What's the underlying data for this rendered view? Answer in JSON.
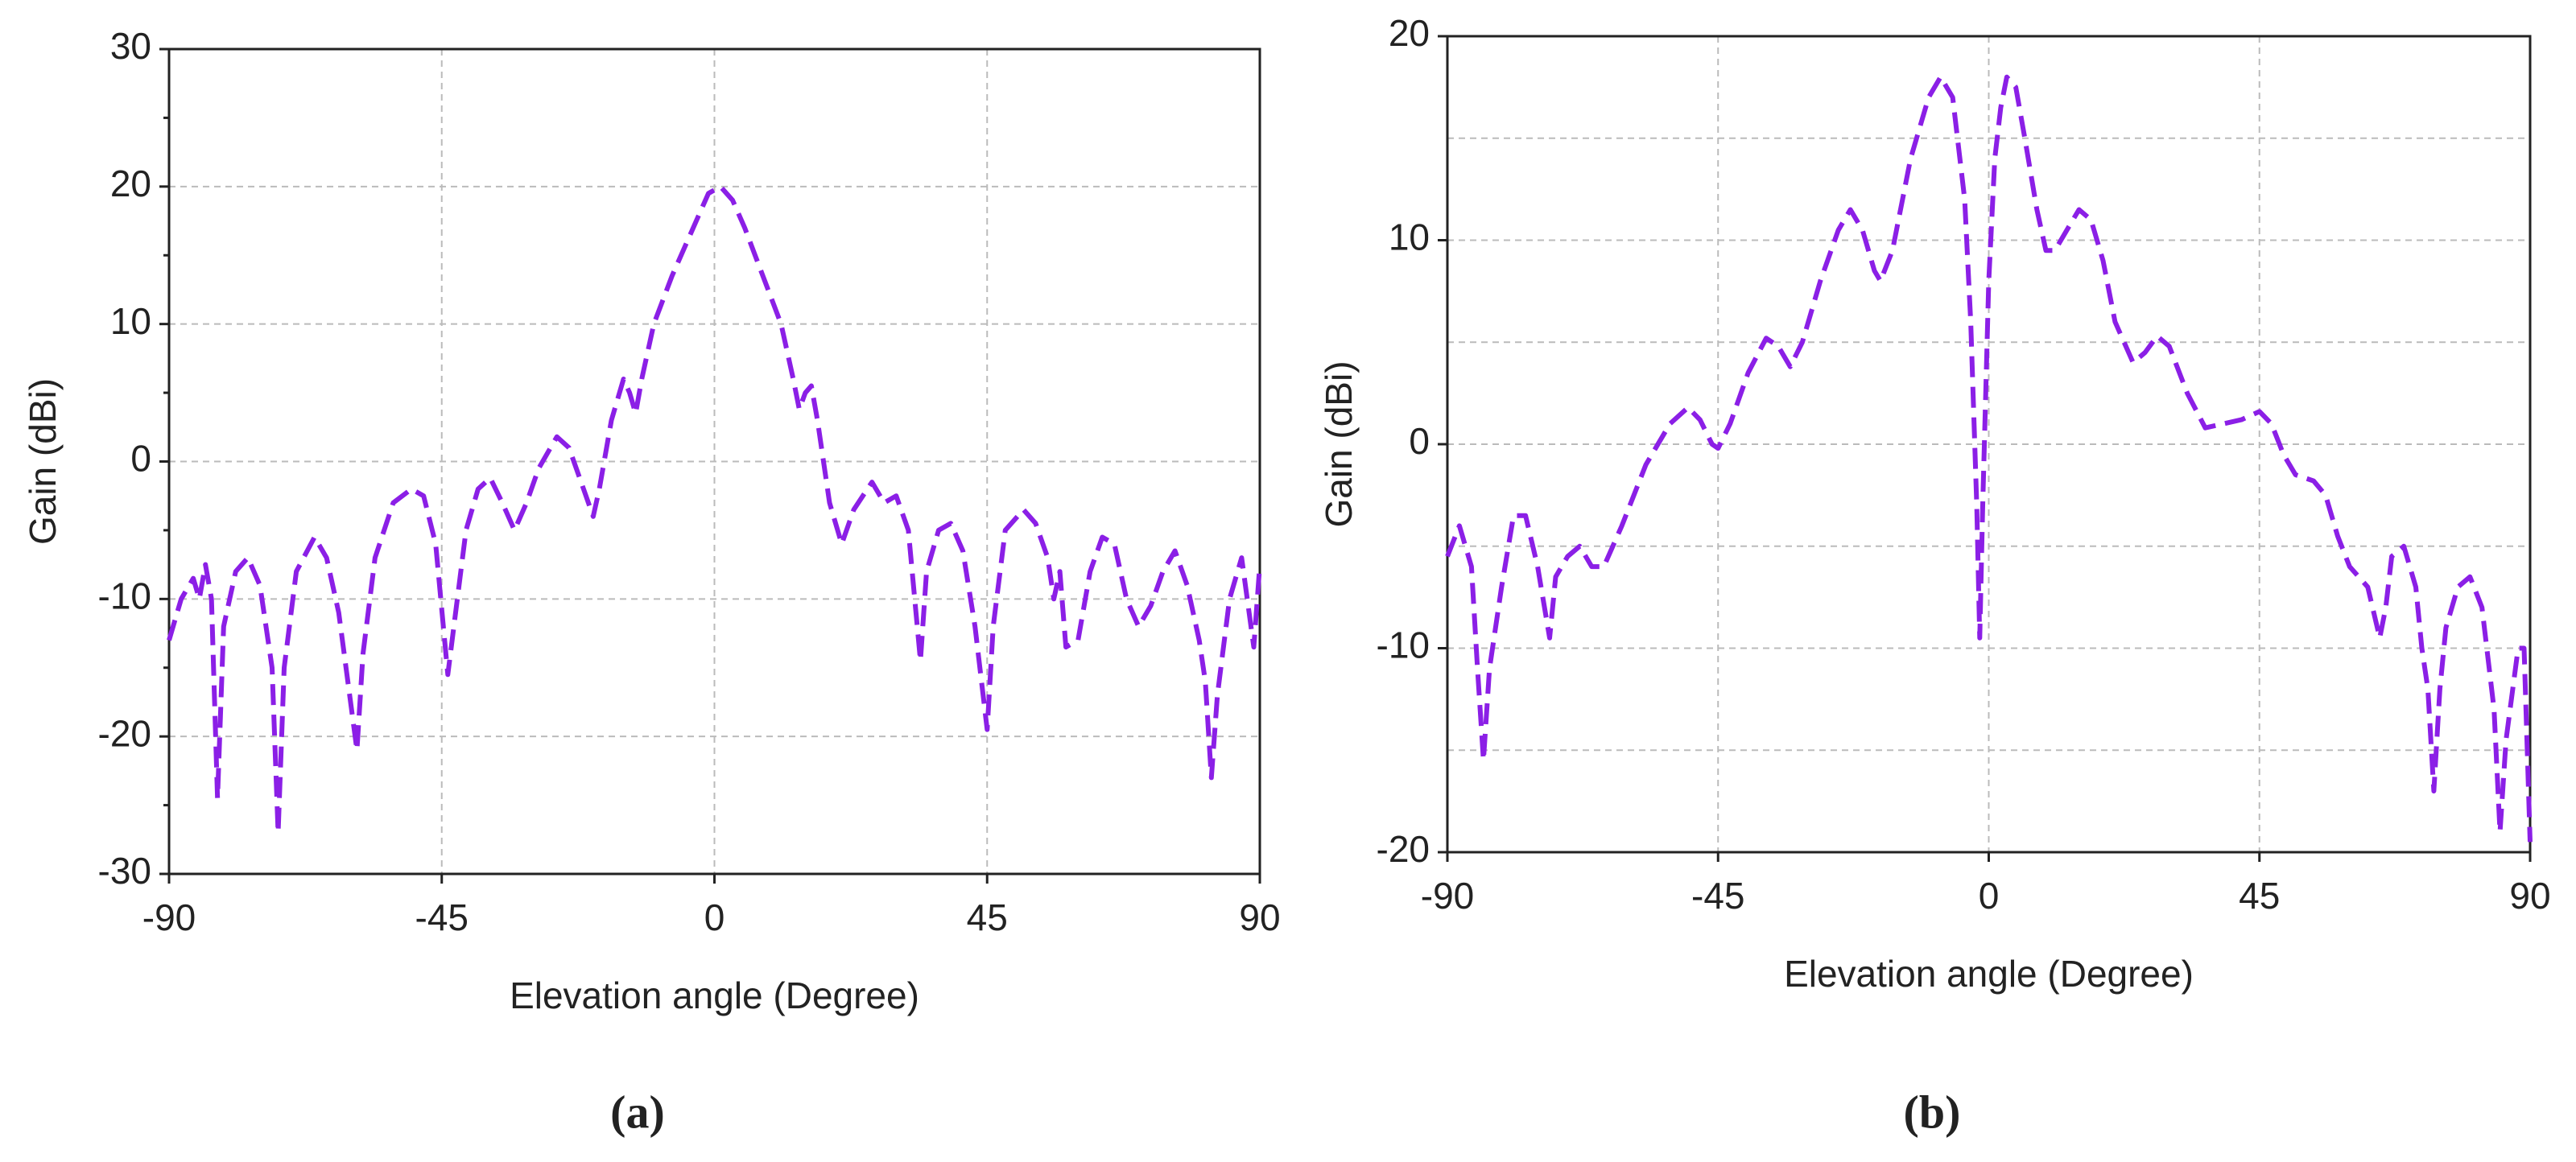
{
  "chart_data": [
    {
      "type": "line",
      "x_label": "Elevation angle (Degree)",
      "y_label": "Gain (dBi)",
      "caption": "(a)",
      "xlim": [
        -90,
        90
      ],
      "ylim": [
        -30,
        30
      ],
      "xticks": [
        -90,
        -45,
        0,
        45,
        90
      ],
      "yticks": [
        -30,
        -20,
        -10,
        0,
        10,
        20,
        30
      ],
      "minor_yticks": [
        -25,
        -15,
        -5,
        5,
        15,
        25
      ],
      "minor_grid": false,
      "grid": true,
      "color": "#8b1fe6",
      "x": [
        -90,
        -88,
        -86,
        -85,
        -84,
        -83,
        -82,
        -81,
        -79,
        -77,
        -75,
        -73,
        -72,
        -71,
        -69,
        -66,
        -64,
        -62,
        -59,
        -58,
        -56,
        -53,
        -50,
        -48,
        -46,
        -44,
        -43,
        -41,
        -39,
        -37,
        -35,
        -33,
        -31,
        -29,
        -26,
        -24,
        -22,
        -20,
        -19,
        -17,
        -15,
        -14,
        -13,
        -12,
        -10,
        -7,
        -4,
        -1,
        1,
        3,
        5,
        8,
        11,
        13,
        14,
        15,
        16,
        17,
        19,
        21,
        23,
        26,
        28,
        30,
        32,
        34,
        35,
        37,
        39,
        41,
        43,
        45,
        46,
        48,
        51,
        53,
        55,
        56,
        57,
        58,
        60,
        62,
        64,
        66,
        68,
        70,
        72,
        74,
        76,
        78,
        80,
        81,
        82,
        83,
        85,
        87,
        89,
        90
      ],
      "values": [
        -13,
        -10,
        -8.5,
        -10,
        -7.5,
        -10,
        -24.5,
        -12,
        -8,
        -7,
        -9,
        -15,
        -27,
        -15,
        -8,
        -5.5,
        -7,
        -11,
        -21,
        -14,
        -7,
        -3,
        -2,
        -2.5,
        -6,
        -15.5,
        -12,
        -5,
        -2,
        -1.2,
        -3,
        -5,
        -3,
        -0.5,
        1.8,
        1,
        -1.5,
        -4,
        -2,
        3,
        6,
        5,
        3.5,
        6,
        10,
        13.5,
        16.5,
        19.5,
        20,
        19,
        17,
        13.5,
        10,
        6,
        3.8,
        5,
        5.5,
        3,
        -3,
        -6,
        -3.5,
        -1.5,
        -3,
        -2.5,
        -5,
        -14.5,
        -8,
        -5,
        -4.5,
        -6.5,
        -12,
        -19.5,
        -12,
        -5,
        -3.5,
        -4.5,
        -7,
        -10,
        -8,
        -13.5,
        -13,
        -8,
        -5.5,
        -6,
        -10,
        -12,
        -10.5,
        -8,
        -6.5,
        -9,
        -13,
        -16,
        -23,
        -17,
        -10,
        -7,
        -13.5,
        -7.5
      ]
    },
    {
      "type": "line",
      "x_label": "Elevation angle (Degree)",
      "y_label": "Gain (dBi)",
      "caption": "(b)",
      "xlim": [
        -90,
        90
      ],
      "ylim": [
        -20,
        20
      ],
      "xticks": [
        -90,
        -45,
        0,
        45,
        90
      ],
      "yticks": [
        -20,
        -10,
        0,
        10,
        20
      ],
      "minor_yticks": [
        -15,
        -5,
        5,
        15
      ],
      "minor_grid": true,
      "grid": true,
      "color": "#8b1fe6",
      "x": [
        -90,
        -88,
        -86,
        -85,
        -84,
        -83,
        -81,
        -79,
        -77,
        -75,
        -73,
        -72,
        -70,
        -68,
        -66,
        -64,
        -61,
        -57,
        -53,
        -50,
        -48,
        -46,
        -45,
        -43,
        -40,
        -37,
        -35,
        -33,
        -31,
        -28,
        -25,
        -23,
        -21,
        -19,
        -18,
        -16,
        -13,
        -10,
        -8,
        -6,
        -4,
        -3,
        -2,
        -1.5,
        -1,
        0,
        1,
        2,
        3,
        4.5,
        6,
        8,
        9.5,
        11,
        13,
        15,
        17,
        19,
        21,
        24,
        26,
        28,
        30,
        33,
        36,
        39,
        42,
        45,
        47,
        49,
        51,
        54,
        56,
        58,
        60,
        63,
        65,
        66,
        67,
        69,
        71,
        72,
        73,
        74,
        75,
        76,
        78,
        80,
        82,
        84,
        85,
        86,
        88,
        89,
        90
      ],
      "values": [
        -5.5,
        -4,
        -6,
        -11,
        -15.5,
        -11,
        -7,
        -3.5,
        -3.5,
        -6,
        -9.5,
        -6.5,
        -5.5,
        -5,
        -6,
        -6,
        -4,
        -1,
        1,
        1.8,
        1.2,
        0,
        -0.2,
        1,
        3.5,
        5.2,
        4.8,
        3.8,
        5,
        8,
        10.5,
        11.5,
        10.5,
        8.5,
        8,
        9.5,
        14,
        17,
        18,
        17,
        12,
        6,
        -3,
        -9.5,
        -3,
        8,
        14,
        16.5,
        18,
        17.5,
        15,
        11.5,
        9.5,
        9.5,
        10.5,
        11.5,
        11,
        9,
        6,
        4,
        4.5,
        5.3,
        4.8,
        2.5,
        0.8,
        1,
        1.2,
        1.6,
        1,
        -0.5,
        -1.5,
        -1.8,
        -2.5,
        -4.5,
        -6,
        -7,
        -9.5,
        -8,
        -5.5,
        -5,
        -7,
        -10,
        -12,
        -17,
        -12,
        -9,
        -7,
        -6.5,
        -8,
        -13,
        -19,
        -14.5,
        -10,
        -10,
        -19.5
      ]
    }
  ]
}
